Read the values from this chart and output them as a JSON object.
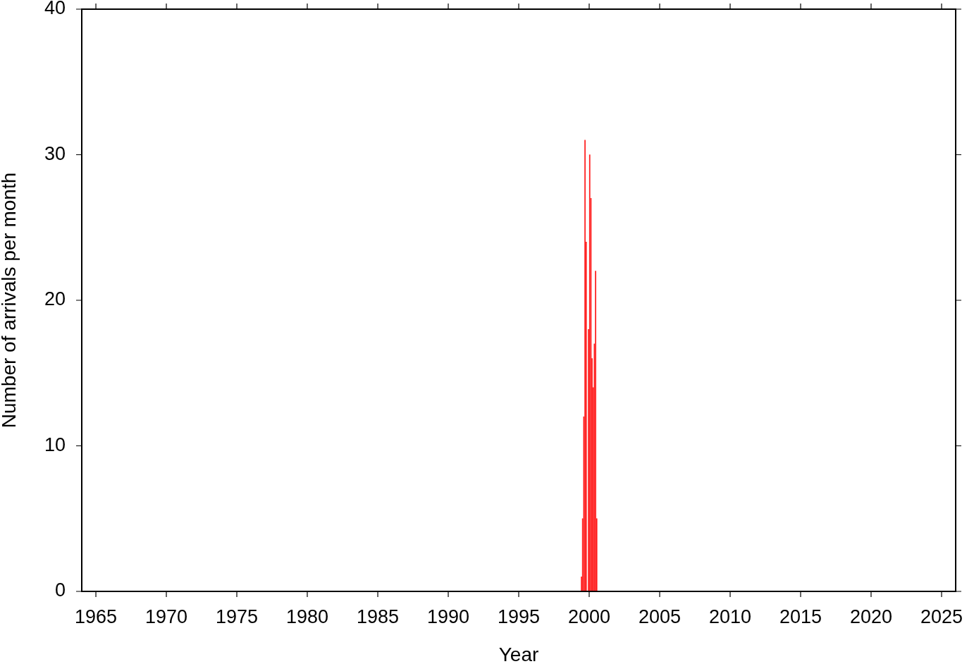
{
  "chart_data": {
    "type": "bar",
    "xlabel": "Year",
    "ylabel": "Number of arrivals per month",
    "x": [
      "1999-06",
      "1999-07",
      "1999-08",
      "1999-09",
      "1999-10",
      "1999-11",
      "1999-12",
      "2000-01",
      "2000-02",
      "2000-03",
      "2000-04",
      "2000-05",
      "2000-06",
      "2000-07"
    ],
    "values": [
      1,
      5,
      12,
      31,
      24,
      0,
      18,
      30,
      27,
      16,
      14,
      17,
      22,
      5
    ],
    "color": "#ff2020",
    "xlim": [
      "1964",
      "2026"
    ],
    "xticks": [
      "1965",
      "1970",
      "1975",
      "1980",
      "1985",
      "1990",
      "1995",
      "2000",
      "2005",
      "2010",
      "2015",
      "2020",
      "2025"
    ],
    "ylim": [
      0,
      40
    ],
    "yticks": [
      0,
      10,
      20,
      30,
      40
    ],
    "grid": false,
    "legend": false
  }
}
